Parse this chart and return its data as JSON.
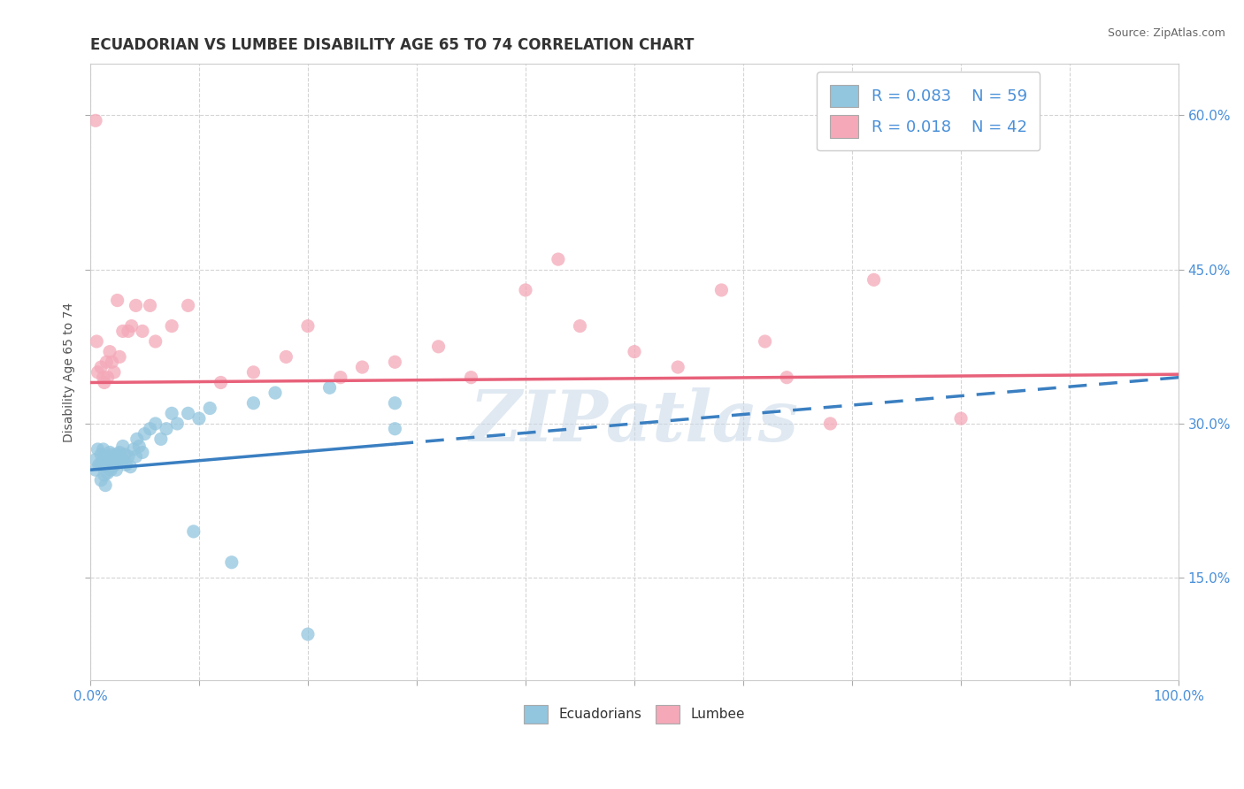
{
  "title": "ECUADORIAN VS LUMBEE DISABILITY AGE 65 TO 74 CORRELATION CHART",
  "source_text": "Source: ZipAtlas.com",
  "ylabel": "Disability Age 65 to 74",
  "xlim": [
    0.0,
    1.0
  ],
  "ylim": [
    0.05,
    0.65
  ],
  "x_ticks": [
    0.0,
    0.1,
    0.2,
    0.3,
    0.4,
    0.5,
    0.6,
    0.7,
    0.8,
    0.9,
    1.0
  ],
  "x_tick_labels": [
    "0.0%",
    "",
    "",
    "",
    "",
    "",
    "",
    "",
    "",
    "",
    "100.0%"
  ],
  "y_ticks": [
    0.15,
    0.3,
    0.45,
    0.6
  ],
  "y_tick_labels": [
    "15.0%",
    "30.0%",
    "45.0%",
    "60.0%"
  ],
  "blue_color": "#92c5de",
  "pink_color": "#f4a8b8",
  "blue_line_color": "#3a7fc1",
  "pink_line_color": "#e8617a",
  "R_blue": 0.083,
  "N_blue": 59,
  "R_pink": 0.018,
  "N_pink": 42,
  "title_fontsize": 12,
  "label_fontsize": 10,
  "tick_fontsize": 11,
  "legend_fontsize": 13,
  "blue_line_solid_end": 0.28,
  "blue_line_x0": 0.0,
  "blue_line_y0": 0.255,
  "blue_line_x1": 1.0,
  "blue_line_y1": 0.345,
  "pink_line_x0": 0.0,
  "pink_line_y0": 0.34,
  "pink_line_x1": 1.0,
  "pink_line_y1": 0.348,
  "ecuadorian_points_x": [
    0.005,
    0.005,
    0.007,
    0.008,
    0.01,
    0.01,
    0.01,
    0.012,
    0.012,
    0.013,
    0.013,
    0.014,
    0.015,
    0.015,
    0.016,
    0.016,
    0.017,
    0.018,
    0.018,
    0.019,
    0.02,
    0.02,
    0.021,
    0.022,
    0.023,
    0.024,
    0.025,
    0.026,
    0.027,
    0.028,
    0.03,
    0.03,
    0.032,
    0.033,
    0.035,
    0.037,
    0.04,
    0.042,
    0.043,
    0.045,
    0.048,
    0.05,
    0.055,
    0.06,
    0.065,
    0.07,
    0.075,
    0.08,
    0.09,
    0.095,
    0.1,
    0.11,
    0.13,
    0.15,
    0.17,
    0.2,
    0.22,
    0.28,
    0.28
  ],
  "ecuadorian_points_y": [
    0.265,
    0.255,
    0.275,
    0.26,
    0.27,
    0.26,
    0.245,
    0.275,
    0.265,
    0.26,
    0.25,
    0.24,
    0.268,
    0.258,
    0.262,
    0.252,
    0.267,
    0.272,
    0.262,
    0.255,
    0.27,
    0.258,
    0.263,
    0.268,
    0.26,
    0.255,
    0.27,
    0.265,
    0.272,
    0.263,
    0.278,
    0.265,
    0.27,
    0.26,
    0.268,
    0.258,
    0.275,
    0.268,
    0.285,
    0.278,
    0.272,
    0.29,
    0.295,
    0.3,
    0.285,
    0.295,
    0.31,
    0.3,
    0.31,
    0.195,
    0.305,
    0.315,
    0.165,
    0.32,
    0.33,
    0.095,
    0.335,
    0.32,
    0.295
  ],
  "lumbee_points_x": [
    0.005,
    0.006,
    0.007,
    0.01,
    0.012,
    0.013,
    0.015,
    0.016,
    0.018,
    0.02,
    0.022,
    0.025,
    0.027,
    0.03,
    0.035,
    0.038,
    0.042,
    0.048,
    0.055,
    0.06,
    0.075,
    0.09,
    0.12,
    0.15,
    0.18,
    0.2,
    0.23,
    0.25,
    0.28,
    0.32,
    0.35,
    0.4,
    0.43,
    0.45,
    0.5,
    0.54,
    0.58,
    0.62,
    0.64,
    0.68,
    0.72,
    0.8
  ],
  "lumbee_points_y": [
    0.595,
    0.38,
    0.35,
    0.355,
    0.345,
    0.34,
    0.36,
    0.345,
    0.37,
    0.36,
    0.35,
    0.42,
    0.365,
    0.39,
    0.39,
    0.395,
    0.415,
    0.39,
    0.415,
    0.38,
    0.395,
    0.415,
    0.34,
    0.35,
    0.365,
    0.395,
    0.345,
    0.355,
    0.36,
    0.375,
    0.345,
    0.43,
    0.46,
    0.395,
    0.37,
    0.355,
    0.43,
    0.38,
    0.345,
    0.3,
    0.44,
    0.305
  ],
  "watermark_text": "ZIPatlas",
  "background_color": "#ffffff",
  "grid_color": "#d0d0d0"
}
